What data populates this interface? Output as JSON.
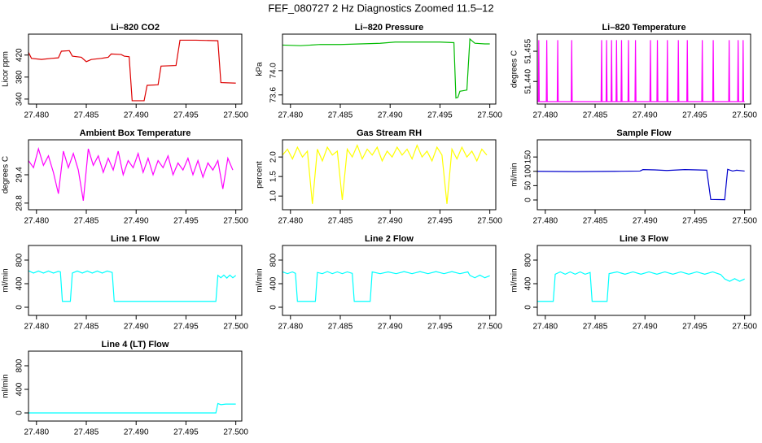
{
  "title": "FEF_080727  2 Hz Diagnostics Zoomed 11.5–12",
  "chart_data": [
    {
      "type": "line",
      "title": "Li–820 CO2",
      "y_label": "Licor ppm",
      "color": "#dd0000",
      "x": [
        27.4792,
        27.4795,
        27.4805,
        27.4815,
        27.4822,
        27.4825,
        27.4833,
        27.4836,
        27.4845,
        27.485,
        27.4855,
        27.4865,
        27.4872,
        27.4875,
        27.4885,
        27.4888,
        27.4893,
        27.4896,
        27.4908,
        27.4911,
        27.4922,
        27.4925,
        27.494,
        27.4944,
        27.496,
        27.4982,
        27.4985,
        27.5
      ],
      "values": [
        425,
        414,
        412,
        414,
        415,
        427,
        428,
        418,
        416,
        408,
        412,
        414,
        416,
        422,
        421,
        418,
        417,
        337,
        337,
        365,
        366,
        400,
        401,
        447,
        447,
        446,
        370,
        369
      ],
      "xlim": [
        27.4792,
        27.5006
      ],
      "ylim": [
        331,
        458
      ],
      "xticks": [
        {
          "value": 27.48,
          "label": "27.480"
        },
        {
          "value": 27.485,
          "label": "27.485"
        },
        {
          "value": 27.49,
          "label": "27.490"
        },
        {
          "value": 27.495,
          "label": "27.495"
        },
        {
          "value": 27.5,
          "label": "27.500"
        }
      ],
      "yticks": [
        340,
        380,
        420
      ]
    },
    {
      "type": "line",
      "title": "Li–820 Pressure",
      "y_label": "kPa",
      "color": "#00bb00",
      "x": [
        27.4792,
        27.481,
        27.483,
        27.485,
        27.487,
        27.489,
        27.4905,
        27.493,
        27.495,
        27.4964,
        27.4966,
        27.4968,
        27.497,
        27.4977,
        27.498,
        27.4985,
        27.4995,
        27.5
      ],
      "values": [
        74.42,
        74.41,
        74.43,
        74.43,
        74.44,
        74.45,
        74.47,
        74.47,
        74.47,
        74.46,
        73.55,
        73.56,
        73.66,
        73.68,
        74.52,
        74.45,
        74.44,
        74.44
      ],
      "xlim": [
        27.4792,
        27.5006
      ],
      "ylim": [
        73.45,
        74.6
      ],
      "xticks": [
        {
          "value": 27.48,
          "label": "27.480"
        },
        {
          "value": 27.485,
          "label": "27.485"
        },
        {
          "value": 27.49,
          "label": "27.490"
        },
        {
          "value": 27.495,
          "label": "27.495"
        },
        {
          "value": 27.5,
          "label": "27.500"
        }
      ],
      "yticks": [
        73.6,
        {
          "value": 74,
          "label": "74.0"
        }
      ]
    },
    {
      "type": "line",
      "title": "Li–820 Temperature",
      "y_label": "degrees C",
      "color": "#ff00ff",
      "x": [
        27.4792,
        27.4793,
        27.47935,
        27.4794,
        27.4801,
        27.48015,
        27.4802,
        27.4812,
        27.48125,
        27.4813,
        27.4826,
        27.48265,
        27.4827,
        27.4856,
        27.48565,
        27.4857,
        27.4861,
        27.48615,
        27.4862,
        27.4866,
        27.48665,
        27.4867,
        27.4871,
        27.48715,
        27.4872,
        27.4876,
        27.48765,
        27.4877,
        27.4883,
        27.48835,
        27.4884,
        27.489,
        27.48905,
        27.4891,
        27.4905,
        27.49055,
        27.4906,
        27.4912,
        27.49125,
        27.4913,
        27.4922,
        27.49225,
        27.4923,
        27.4933,
        27.49335,
        27.4934,
        27.4942,
        27.49425,
        27.4943,
        27.4957,
        27.49575,
        27.4958,
        27.4968,
        27.49685,
        27.4969,
        27.4984,
        27.49845,
        27.4985,
        27.4993,
        27.49935,
        27.4994,
        27.4998,
        27.49985,
        27.4999,
        27.5
      ],
      "values": [
        51.43,
        51.43,
        51.4605,
        51.43,
        51.43,
        51.4605,
        51.43,
        51.43,
        51.4605,
        51.43,
        51.43,
        51.4605,
        51.43,
        51.43,
        51.4605,
        51.43,
        51.43,
        51.4605,
        51.43,
        51.43,
        51.4605,
        51.43,
        51.43,
        51.4605,
        51.43,
        51.43,
        51.4605,
        51.43,
        51.43,
        51.4605,
        51.43,
        51.43,
        51.4605,
        51.43,
        51.43,
        51.4605,
        51.43,
        51.43,
        51.4605,
        51.43,
        51.43,
        51.4605,
        51.43,
        51.43,
        51.4605,
        51.43,
        51.43,
        51.4605,
        51.43,
        51.43,
        51.4605,
        51.43,
        51.43,
        51.4605,
        51.43,
        51.43,
        51.4605,
        51.43,
        51.43,
        51.4605,
        51.43,
        51.43,
        51.4605,
        51.43,
        51.43
      ],
      "xlim": [
        27.4792,
        27.5006
      ],
      "ylim": [
        51.4288,
        51.4635
      ],
      "xticks": [
        {
          "value": 27.48,
          "label": "27.480"
        },
        {
          "value": 27.485,
          "label": "27.485"
        },
        {
          "value": 27.49,
          "label": "27.490"
        },
        {
          "value": 27.495,
          "label": "27.495"
        },
        {
          "value": 27.5,
          "label": "27.500"
        }
      ],
      "yticks": [
        {
          "value": 51.44,
          "label": "51.440"
        },
        {
          "value": 51.455,
          "label": "51.455"
        }
      ]
    },
    {
      "type": "line",
      "title": "Ambient Box Temperature",
      "y_label": "degrees C",
      "color": "#ff00ff",
      "x": [
        27.4792,
        27.4797,
        27.4802,
        27.4807,
        27.4812,
        27.4817,
        27.4822,
        27.4827,
        27.4832,
        27.4837,
        27.4842,
        27.4847,
        27.4852,
        27.4857,
        27.4862,
        27.4867,
        27.4872,
        27.4877,
        27.4882,
        27.4887,
        27.4892,
        27.4897,
        27.4902,
        27.4907,
        27.4912,
        27.4917,
        27.4922,
        27.4927,
        27.4932,
        27.4937,
        27.4942,
        27.4947,
        27.4952,
        27.4957,
        27.4962,
        27.4967,
        27.4972,
        27.4977,
        27.4982,
        27.4987,
        27.4992,
        27.4997
      ],
      "values": [
        29.7,
        29.55,
        29.95,
        29.6,
        29.8,
        29.45,
        29.0,
        29.9,
        29.55,
        29.85,
        29.5,
        28.85,
        29.95,
        29.6,
        29.8,
        29.45,
        29.75,
        29.5,
        29.9,
        29.4,
        29.7,
        29.55,
        29.85,
        29.45,
        29.75,
        29.4,
        29.7,
        29.55,
        29.8,
        29.4,
        29.65,
        29.5,
        29.75,
        29.4,
        29.7,
        29.35,
        29.65,
        29.5,
        29.7,
        29.1,
        29.75,
        29.5
      ],
      "xlim": [
        27.4792,
        27.5006
      ],
      "ylim": [
        28.66,
        30.14
      ],
      "xticks": [
        {
          "value": 27.48,
          "label": "27.480"
        },
        {
          "value": 27.485,
          "label": "27.485"
        },
        {
          "value": 27.49,
          "label": "27.490"
        },
        {
          "value": 27.495,
          "label": "27.495"
        },
        {
          "value": 27.5,
          "label": "27.500"
        }
      ],
      "yticks": [
        28.8,
        29.4
      ]
    },
    {
      "type": "line",
      "title": "Gas Stream RH",
      "y_label": "percent",
      "color": "#ffff00",
      "x": [
        27.4792,
        27.4797,
        27.4802,
        27.4807,
        27.4812,
        27.4817,
        27.4822,
        27.4827,
        27.4832,
        27.4837,
        27.4842,
        27.4847,
        27.4852,
        27.4857,
        27.4862,
        27.4867,
        27.4872,
        27.4877,
        27.4882,
        27.4887,
        27.4892,
        27.4897,
        27.4902,
        27.4907,
        27.4912,
        27.4917,
        27.4922,
        27.4927,
        27.4932,
        27.4937,
        27.4942,
        27.4947,
        27.4952,
        27.4957,
        27.4962,
        27.4967,
        27.4972,
        27.4977,
        27.4982,
        27.4987,
        27.4992,
        27.4997
      ],
      "values": [
        2.05,
        2.2,
        1.95,
        2.25,
        2.0,
        2.15,
        0.8,
        2.2,
        1.9,
        2.25,
        2.05,
        2.15,
        0.9,
        2.2,
        2.0,
        2.3,
        1.95,
        2.2,
        2.05,
        2.25,
        1.9,
        2.15,
        2.0,
        2.25,
        2.05,
        2.2,
        1.95,
        2.3,
        2.0,
        2.15,
        1.9,
        2.25,
        2.05,
        0.8,
        2.2,
        1.95,
        2.25,
        2.0,
        2.15,
        1.9,
        2.2,
        2.05
      ],
      "xlim": [
        27.4792,
        27.5006
      ],
      "ylim": [
        0.65,
        2.44
      ],
      "xticks": [
        {
          "value": 27.48,
          "label": "27.480"
        },
        {
          "value": 27.485,
          "label": "27.485"
        },
        {
          "value": 27.49,
          "label": "27.490"
        },
        {
          "value": 27.495,
          "label": "27.495"
        },
        {
          "value": 27.5,
          "label": "27.500"
        }
      ],
      "yticks": [
        {
          "value": 1,
          "label": "1.0"
        },
        1.5,
        {
          "value": 2,
          "label": "2.0"
        }
      ]
    },
    {
      "type": "line",
      "title": "Sample Flow",
      "y_label": "ml/min",
      "color": "#0000cc",
      "x": [
        27.4792,
        27.483,
        27.487,
        27.4895,
        27.4898,
        27.491,
        27.4922,
        27.494,
        27.4952,
        27.4962,
        27.4966,
        27.498,
        27.4983,
        27.4988,
        27.4992,
        27.5
      ],
      "values": [
        100,
        99,
        100,
        101,
        106,
        105,
        103,
        106,
        105,
        104,
        2,
        1,
        107,
        101,
        104,
        101
      ],
      "xlim": [
        27.4792,
        27.5006
      ],
      "ylim": [
        -34,
        210
      ],
      "xticks": [
        {
          "value": 27.48,
          "label": "27.480"
        },
        {
          "value": 27.485,
          "label": "27.485"
        },
        {
          "value": 27.49,
          "label": "27.490"
        },
        {
          "value": 27.495,
          "label": "27.495"
        },
        {
          "value": 27.5,
          "label": "27.500"
        }
      ],
      "yticks": [
        0,
        50,
        100,
        150
      ]
    },
    {
      "type": "line",
      "title": "Line 1 Flow",
      "y_label": "ml/min",
      "color": "#00ffff",
      "x": [
        27.4792,
        27.4797,
        27.4802,
        27.4807,
        27.4812,
        27.4817,
        27.4822,
        27.4824,
        27.4826,
        27.4834,
        27.4836,
        27.4841,
        27.4846,
        27.4851,
        27.4856,
        27.4861,
        27.4866,
        27.4871,
        27.4876,
        27.4878,
        27.498,
        27.4982,
        27.4985,
        27.4988,
        27.4991,
        27.4994,
        27.4997,
        27.5
      ],
      "values": [
        620,
        580,
        615,
        580,
        615,
        580,
        610,
        600,
        100,
        100,
        580,
        615,
        580,
        615,
        580,
        615,
        580,
        615,
        590,
        100,
        100,
        540,
        500,
        545,
        495,
        545,
        500,
        540
      ],
      "xlim": [
        27.4792,
        27.5006
      ],
      "ylim": [
        -138,
        1048
      ],
      "xticks": [
        {
          "value": 27.48,
          "label": "27.480"
        },
        {
          "value": 27.485,
          "label": "27.485"
        },
        {
          "value": 27.49,
          "label": "27.490"
        },
        {
          "value": 27.495,
          "label": "27.495"
        },
        {
          "value": 27.5,
          "label": "27.500"
        }
      ],
      "yticks": [
        0,
        400,
        800
      ]
    },
    {
      "type": "line",
      "title": "Line 2 Flow",
      "y_label": "ml/min",
      "color": "#00ffff",
      "x": [
        27.4792,
        27.4797,
        27.4802,
        27.4805,
        27.4807,
        27.4825,
        27.4827,
        27.4832,
        27.4837,
        27.4842,
        27.4847,
        27.4852,
        27.4857,
        27.4862,
        27.4864,
        27.488,
        27.4882,
        27.489,
        27.4898,
        27.4906,
        27.4914,
        27.4922,
        27.493,
        27.4938,
        27.4946,
        27.4954,
        27.4962,
        27.497,
        27.4978,
        27.498,
        27.4985,
        27.499,
        27.4995,
        27.5
      ],
      "values": [
        600,
        570,
        600,
        575,
        100,
        100,
        590,
        570,
        605,
        570,
        600,
        570,
        600,
        575,
        100,
        100,
        600,
        570,
        600,
        570,
        605,
        570,
        605,
        570,
        605,
        570,
        605,
        570,
        600,
        540,
        500,
        545,
        500,
        535
      ],
      "xlim": [
        27.4792,
        27.5006
      ],
      "ylim": [
        -138,
        1048
      ],
      "xticks": [
        {
          "value": 27.48,
          "label": "27.480"
        },
        {
          "value": 27.485,
          "label": "27.485"
        },
        {
          "value": 27.49,
          "label": "27.490"
        },
        {
          "value": 27.495,
          "label": "27.495"
        },
        {
          "value": 27.5,
          "label": "27.500"
        }
      ],
      "yticks": [
        0,
        400,
        800
      ]
    },
    {
      "type": "line",
      "title": "Line 3 Flow",
      "y_label": "ml/min",
      "color": "#00ffff",
      "x": [
        27.4792,
        27.4808,
        27.481,
        27.4815,
        27.482,
        27.4825,
        27.483,
        27.4835,
        27.484,
        27.4845,
        27.4847,
        27.4862,
        27.4864,
        27.4872,
        27.488,
        27.4888,
        27.4896,
        27.4904,
        27.4912,
        27.492,
        27.4928,
        27.4936,
        27.4944,
        27.4952,
        27.496,
        27.4968,
        27.4976,
        27.498,
        27.4985,
        27.499,
        27.4995,
        27.5
      ],
      "values": [
        100,
        100,
        560,
        600,
        560,
        600,
        560,
        600,
        560,
        590,
        100,
        100,
        570,
        600,
        560,
        600,
        560,
        600,
        560,
        600,
        560,
        600,
        560,
        600,
        560,
        600,
        555,
        480,
        440,
        485,
        440,
        480
      ],
      "xlim": [
        27.4792,
        27.5006
      ],
      "ylim": [
        -138,
        1048
      ],
      "xticks": [
        {
          "value": 27.48,
          "label": "27.480"
        },
        {
          "value": 27.485,
          "label": "27.485"
        },
        {
          "value": 27.49,
          "label": "27.490"
        },
        {
          "value": 27.495,
          "label": "27.495"
        },
        {
          "value": 27.5,
          "label": "27.500"
        }
      ],
      "yticks": [
        0,
        400,
        800
      ]
    },
    {
      "type": "line",
      "title": "Line 4 (LT) Flow",
      "y_label": "ml/min",
      "color": "#00ffff",
      "x": [
        27.4792,
        27.49,
        27.498,
        27.4982,
        27.4985,
        27.499,
        27.5
      ],
      "values": [
        0,
        0,
        0,
        160,
        140,
        150,
        150
      ],
      "xlim": [
        27.4792,
        27.5006
      ],
      "ylim": [
        -138,
        1048
      ],
      "xticks": [
        {
          "value": 27.48,
          "label": "27.480"
        },
        {
          "value": 27.485,
          "label": "27.485"
        },
        {
          "value": 27.49,
          "label": "27.490"
        },
        {
          "value": 27.495,
          "label": "27.495"
        },
        {
          "value": 27.5,
          "label": "27.500"
        }
      ],
      "yticks": [
        0,
        400,
        800
      ]
    }
  ]
}
